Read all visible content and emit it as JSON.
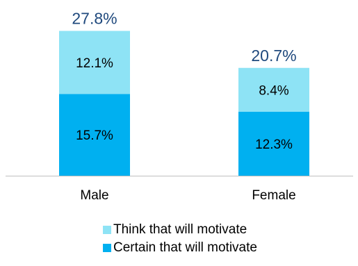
{
  "chart_data": {
    "type": "bar",
    "stacked": true,
    "categories": [
      "Male",
      "Female"
    ],
    "series": [
      {
        "name": "Certain that will motivate",
        "values": [
          15.7,
          12.3
        ],
        "labels": [
          "15.7%",
          "12.3%"
        ],
        "color": "#00B0F0"
      },
      {
        "name": "Think that will motivate",
        "values": [
          12.1,
          8.4
        ],
        "labels": [
          "12.1%",
          "8.4%"
        ],
        "color": "#8EE3F5"
      }
    ],
    "totals": [
      27.8,
      20.7
    ],
    "total_labels": [
      "27.8%",
      "20.7%"
    ],
    "total_label_color": "#1F497D",
    "ylim": [
      0,
      30
    ],
    "title": "",
    "xlabel": "",
    "ylabel": "",
    "grid": false,
    "legend_placement": "bottom"
  }
}
